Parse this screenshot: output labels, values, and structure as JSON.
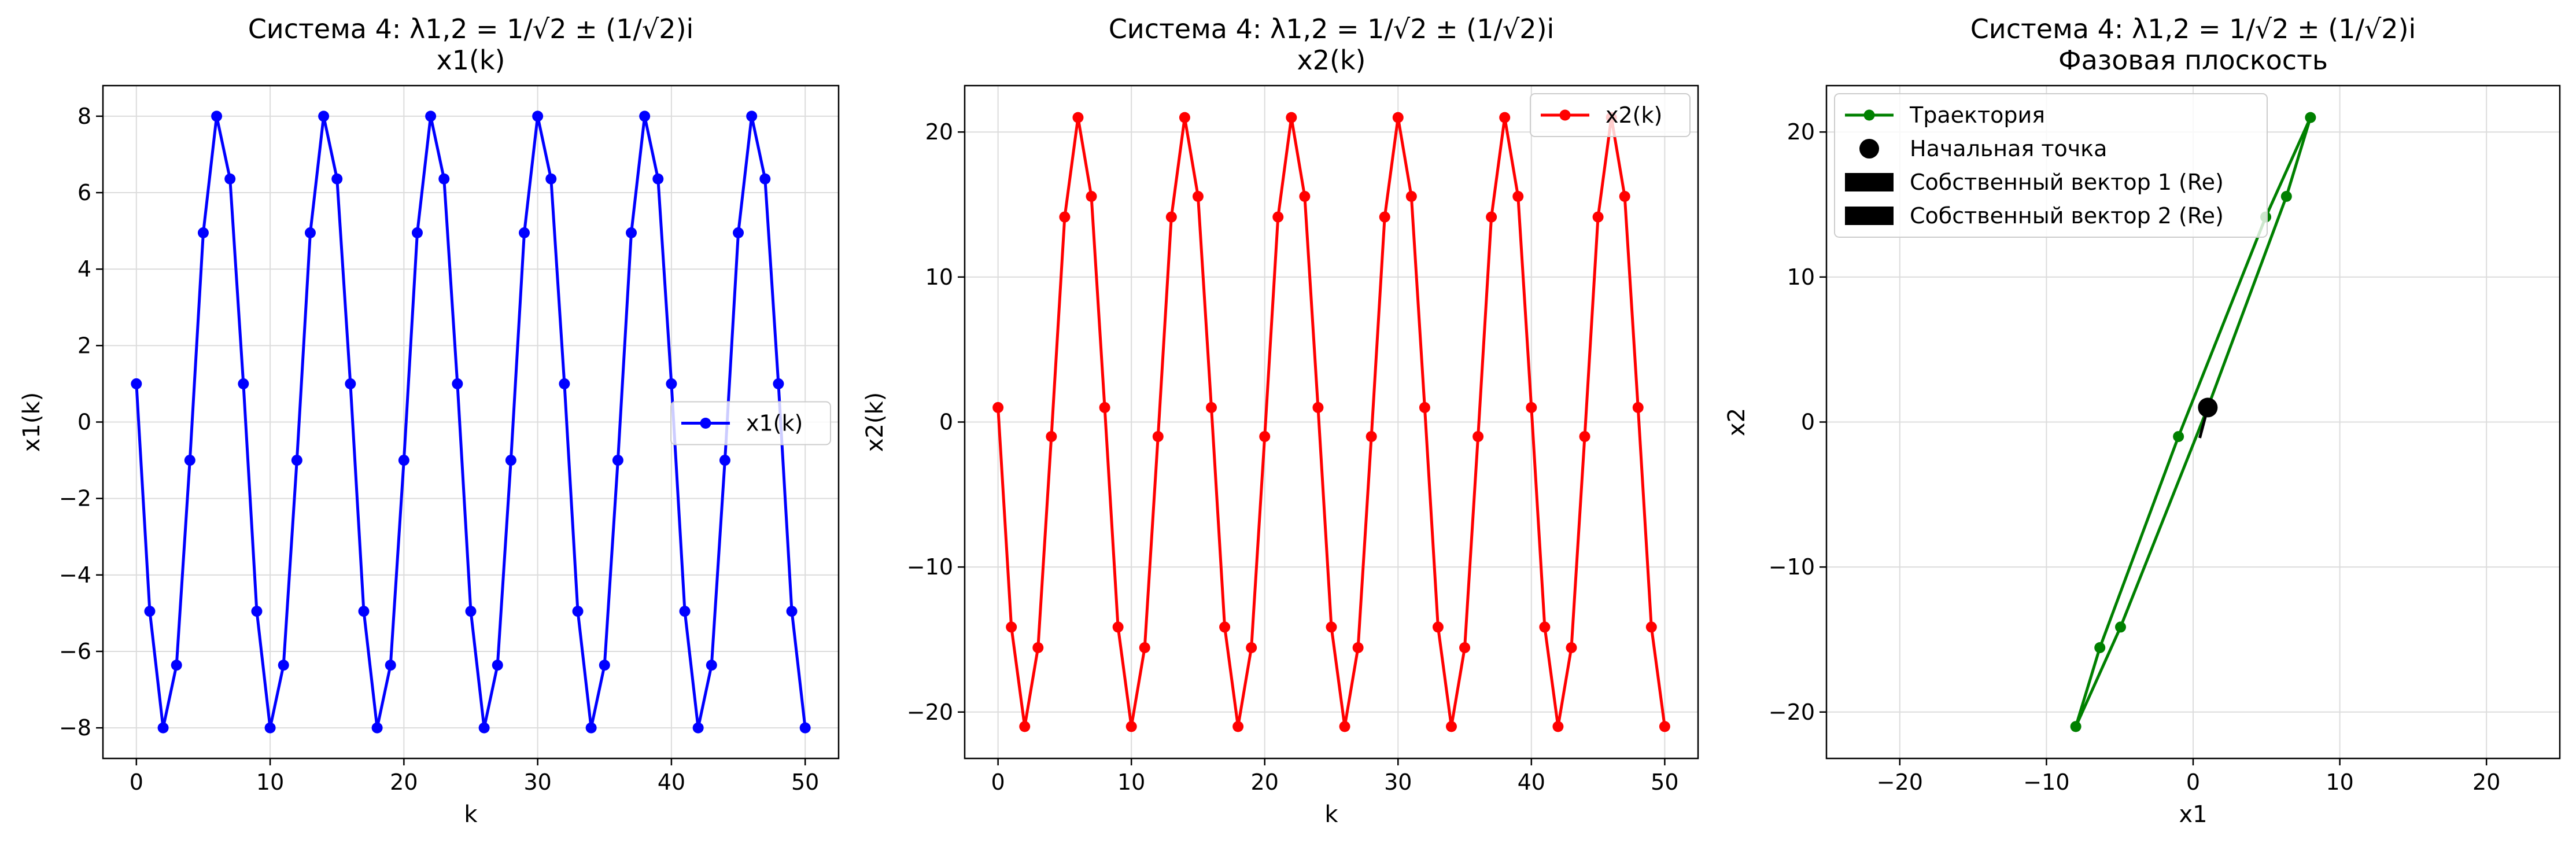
{
  "chart_data": [
    {
      "type": "line",
      "title": "Система 4: λ1,2 = 1/√2 ± (1/√2)i",
      "subtitle": "x1(k)",
      "xlabel": "k",
      "ylabel": "x1(k)",
      "xlim": [
        -2.5,
        52.5
      ],
      "ylim": [
        -8.8,
        8.8
      ],
      "xticks": [
        0,
        10,
        20,
        30,
        40,
        50
      ],
      "xtick_labels": [
        "0",
        "10",
        "20",
        "30",
        "40",
        "50"
      ],
      "yticks": [
        -8,
        -6,
        -4,
        -2,
        0,
        2,
        4,
        6,
        8
      ],
      "ytick_labels": [
        "−8",
        "−6",
        "−4",
        "−2",
        "0",
        "2",
        "4",
        "6",
        "8"
      ],
      "grid": true,
      "legend": "center-right",
      "series": [
        {
          "name": "x1(k)",
          "color": "#0000ff",
          "marker": "circle",
          "x": [
            0,
            1,
            2,
            3,
            4,
            5,
            6,
            7,
            8,
            9,
            10,
            11,
            12,
            13,
            14,
            15,
            16,
            17,
            18,
            19,
            20,
            21,
            22,
            23,
            24,
            25,
            26,
            27,
            28,
            29,
            30,
            31,
            32,
            33,
            34,
            35,
            36,
            37,
            38,
            39,
            40,
            41,
            42,
            43,
            44,
            45,
            46,
            47,
            48,
            49,
            50
          ],
          "y": [
            1,
            -4.95,
            -8,
            -6.36,
            -1,
            4.95,
            8,
            6.36,
            1,
            -4.95,
            -8,
            -6.36,
            -1,
            4.95,
            8,
            6.36,
            1,
            -4.95,
            -8,
            -6.36,
            -1,
            4.95,
            8,
            6.36,
            1,
            -4.95,
            -8,
            -6.36,
            -1,
            4.95,
            8,
            6.36,
            1,
            -4.95,
            -8,
            -6.36,
            -1,
            4.95,
            8,
            6.36,
            1,
            -4.95,
            -8,
            -6.36,
            -1,
            4.95,
            8,
            6.36,
            1,
            -4.95,
            -8
          ]
        }
      ]
    },
    {
      "type": "line",
      "title": "Система 4: λ1,2 = 1/√2 ± (1/√2)i",
      "subtitle": "x2(k)",
      "xlabel": "k",
      "ylabel": "x2(k)",
      "xlim": [
        -2.5,
        52.5
      ],
      "ylim": [
        -23.2,
        23.2
      ],
      "xticks": [
        0,
        10,
        20,
        30,
        40,
        50
      ],
      "xtick_labels": [
        "0",
        "10",
        "20",
        "30",
        "40",
        "50"
      ],
      "yticks": [
        -20,
        -10,
        0,
        10,
        20
      ],
      "ytick_labels": [
        "−20",
        "−10",
        "0",
        "10",
        "20"
      ],
      "grid": true,
      "legend": "top-right",
      "series": [
        {
          "name": "x2(k)",
          "color": "#ff0000",
          "marker": "circle",
          "x": [
            0,
            1,
            2,
            3,
            4,
            5,
            6,
            7,
            8,
            9,
            10,
            11,
            12,
            13,
            14,
            15,
            16,
            17,
            18,
            19,
            20,
            21,
            22,
            23,
            24,
            25,
            26,
            27,
            28,
            29,
            30,
            31,
            32,
            33,
            34,
            35,
            36,
            37,
            38,
            39,
            40,
            41,
            42,
            43,
            44,
            45,
            46,
            47,
            48,
            49,
            50
          ],
          "y": [
            1,
            -14.14,
            -21,
            -15.56,
            -1,
            14.14,
            21,
            15.56,
            1,
            -14.14,
            -21,
            -15.56,
            -1,
            14.14,
            21,
            15.56,
            1,
            -14.14,
            -21,
            -15.56,
            -1,
            14.14,
            21,
            15.56,
            1,
            -14.14,
            -21,
            -15.56,
            -1,
            14.14,
            21,
            15.56,
            1,
            -14.14,
            -21,
            -15.56,
            -1,
            14.14,
            21,
            15.56,
            1,
            -14.14,
            -21,
            -15.56,
            -1,
            14.14,
            21,
            15.56,
            1,
            -14.14,
            -21
          ]
        }
      ]
    },
    {
      "type": "line",
      "title": "Система 4: λ1,2 = 1/√2 ± (1/√2)i",
      "subtitle": "Фазовая плоскость",
      "xlabel": "x1",
      "ylabel": "x2",
      "xlim": [
        -25,
        25
      ],
      "ylim": [
        -23.2,
        23.2
      ],
      "xticks": [
        -20,
        -10,
        0,
        10,
        20
      ],
      "xtick_labels": [
        "−20",
        "−10",
        "0",
        "10",
        "20"
      ],
      "yticks": [
        -20,
        -10,
        0,
        10,
        20
      ],
      "ytick_labels": [
        "−20",
        "−10",
        "0",
        "10",
        "20"
      ],
      "grid": true,
      "legend": "top-left",
      "series": [
        {
          "name": "Траектория",
          "color": "#008000",
          "marker": "circle",
          "x": [
            1,
            -4.95,
            -8,
            -6.36,
            -1,
            4.95,
            8,
            6.36,
            1
          ],
          "y": [
            1,
            -14.14,
            -21,
            -15.56,
            -1,
            14.14,
            21,
            15.56,
            1
          ]
        },
        {
          "name": "Начальная точка",
          "color": "#000000",
          "marker": "circle-large",
          "x": [
            1
          ],
          "y": [
            1
          ]
        },
        {
          "name": "Собственный вектор 1 (Re)",
          "color": "#000000",
          "marker": "arrow",
          "x": [
            1,
            0.45
          ],
          "y": [
            1,
            -1.1
          ]
        },
        {
          "name": "Собственный вектор 2 (Re)",
          "color": "#000000",
          "marker": "arrow",
          "x": [
            1,
            1
          ],
          "y": [
            1,
            1
          ]
        }
      ]
    }
  ]
}
